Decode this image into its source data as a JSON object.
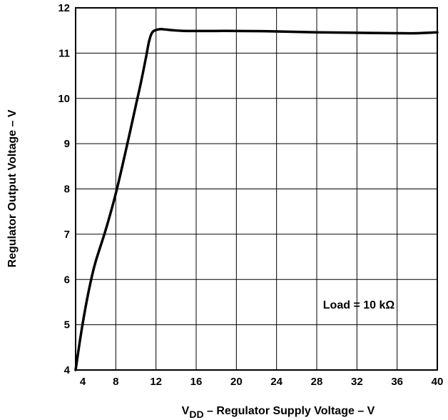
{
  "chart_data": {
    "type": "line",
    "title": "",
    "xlabel": {
      "prefix": "V",
      "subscript": "DD",
      "suffix": " – Regulator Supply Voltage – V"
    },
    "ylabel": "Regulator Output Voltage – V",
    "xlim": [
      4,
      40
    ],
    "ylim": [
      4,
      12
    ],
    "x_ticks": [
      "4",
      "8",
      "12",
      "16",
      "20",
      "24",
      "28",
      "32",
      "36",
      "40"
    ],
    "y_ticks": [
      "4",
      "5",
      "6",
      "7",
      "8",
      "9",
      "10",
      "11",
      "12"
    ],
    "grid": true,
    "annotation": "Load = 10 kΩ",
    "series": [
      {
        "x": [
          4.0,
          4.5,
          5.0,
          5.5,
          6.0,
          7.0,
          8.0,
          9.0,
          10.0,
          10.5,
          11.0,
          11.3,
          11.6,
          12.0,
          12.5,
          13.0,
          14.0,
          15.0,
          16.0,
          18.0,
          20.0,
          24.0,
          28.0,
          32.0,
          36.0,
          38.0,
          40.0
        ],
        "y": [
          4.0,
          4.75,
          5.4,
          5.95,
          6.4,
          7.1,
          7.9,
          8.85,
          9.85,
          10.35,
          10.9,
          11.25,
          11.45,
          11.51,
          11.53,
          11.52,
          11.5,
          11.49,
          11.49,
          11.49,
          11.49,
          11.48,
          11.46,
          11.45,
          11.44,
          11.44,
          11.46
        ]
      }
    ]
  }
}
